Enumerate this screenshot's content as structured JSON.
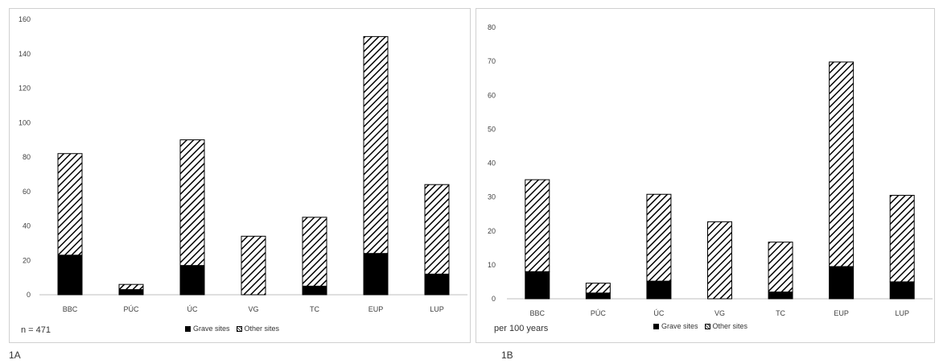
{
  "chart_data": [
    {
      "type": "bar",
      "stacked": true,
      "categories": [
        "BBC",
        "PÚC",
        "ÚC",
        "VG",
        "TC",
        "EUP",
        "LUP"
      ],
      "series": [
        {
          "name": "Grave sites",
          "values": [
            23,
            3,
            17,
            0,
            5,
            24,
            12
          ],
          "color": "#000000"
        },
        {
          "name": "Other sites",
          "values": [
            59,
            3,
            73,
            34,
            40,
            126,
            52
          ],
          "pattern": "diagonal-hatch"
        }
      ],
      "ylim": [
        0,
        160
      ],
      "yticks": [
        0,
        20,
        40,
        60,
        80,
        100,
        120,
        140,
        160
      ],
      "grid": false,
      "legend": "bottom-center",
      "annotation": "n = 471",
      "panel_label": "1A"
    },
    {
      "type": "bar",
      "stacked": true,
      "categories": [
        "BBC",
        "PÚC",
        "ÚC",
        "VG",
        "TC",
        "EUP",
        "LUP"
      ],
      "series": [
        {
          "name": "Grave sites",
          "values": [
            8,
            1.7,
            5.2,
            0,
            2,
            9.5,
            5
          ],
          "color": "#000000"
        },
        {
          "name": "Other sites",
          "values": [
            27.1,
            2.9,
            25.6,
            22.7,
            14.7,
            60.3,
            25.5
          ],
          "pattern": "diagonal-hatch"
        }
      ],
      "ylim": [
        0,
        80
      ],
      "yticks": [
        0,
        10,
        20,
        30,
        40,
        50,
        60,
        70,
        80
      ],
      "grid": false,
      "legend": "bottom-center",
      "annotation": "per 100 years",
      "panel_label": "1B"
    }
  ]
}
